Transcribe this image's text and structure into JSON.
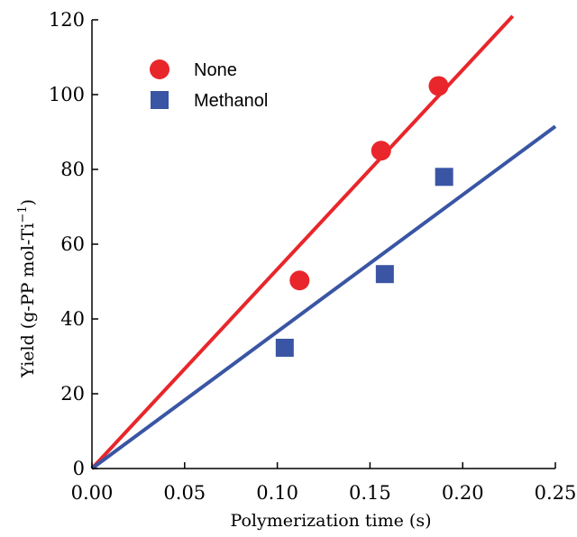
{
  "chart_data": {
    "type": "scatter",
    "xlabel": "Polymerization time (s)",
    "ylabel": "Yield (g-PP mol-Ti",
    "ylabel_sup": "−1",
    "ylabel_close": ")",
    "xlim": [
      0,
      0.25
    ],
    "ylim": [
      0,
      120
    ],
    "xticks": [
      0.0,
      0.05,
      0.1,
      0.15,
      0.2,
      0.25
    ],
    "xtick_labels": [
      "0.00",
      "0.05",
      "0.10",
      "0.15",
      "0.20",
      "0.25"
    ],
    "yticks": [
      0,
      20,
      40,
      60,
      80,
      100,
      120
    ],
    "ytick_labels": [
      "0",
      "20",
      "40",
      "60",
      "80",
      "100",
      "120"
    ],
    "grid": false,
    "legend_position": "top-left",
    "series": [
      {
        "name": "None",
        "marker": "circle",
        "color": "#e8262b",
        "points": [
          {
            "x": 0.112,
            "y": 50.3
          },
          {
            "x": 0.156,
            "y": 85.0
          },
          {
            "x": 0.187,
            "y": 102.3
          }
        ],
        "fit": {
          "x": [
            0,
            0.227
          ],
          "y": [
            0,
            121
          ]
        }
      },
      {
        "name": "Methanol",
        "marker": "square",
        "color": "#3a55a4",
        "points": [
          {
            "x": 0.104,
            "y": 32.3
          },
          {
            "x": 0.158,
            "y": 52.0
          },
          {
            "x": 0.19,
            "y": 78.0
          }
        ],
        "fit": {
          "x": [
            0,
            0.25
          ],
          "y": [
            0,
            91.5
          ]
        }
      }
    ]
  }
}
